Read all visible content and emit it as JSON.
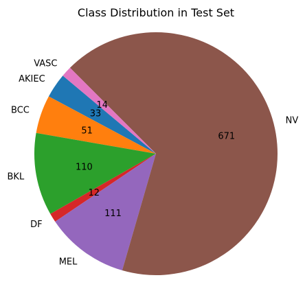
{
  "chart_data": {
    "type": "pie",
    "title": "Class Distribution in Test Set",
    "slices": [
      {
        "label": "AKIEC",
        "value": 33,
        "color": "#1f77b4"
      },
      {
        "label": "BCC",
        "value": 51,
        "color": "#ff7f0e"
      },
      {
        "label": "BKL",
        "value": 110,
        "color": "#2ca02c"
      },
      {
        "label": "DF",
        "value": 12,
        "color": "#d62728"
      },
      {
        "label": "MEL",
        "value": 111,
        "color": "#9467bd"
      },
      {
        "label": "NV",
        "value": 671,
        "color": "#8c564b"
      },
      {
        "label": "VASC",
        "value": 14,
        "color": "#e377c2"
      }
    ],
    "value_labels": "absolute",
    "start_angle_deg": 140,
    "direction": "counterclockwise",
    "legend": "none"
  }
}
